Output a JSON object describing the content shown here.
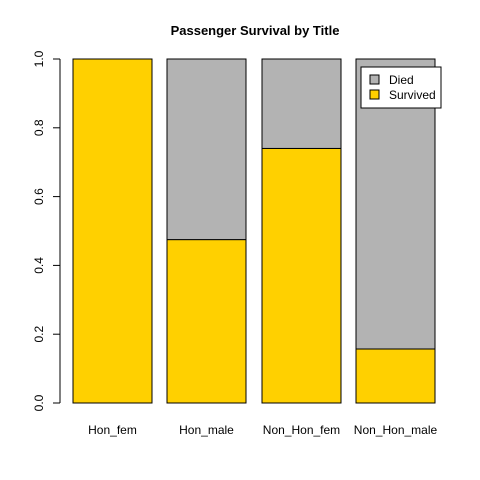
{
  "chart_data": {
    "type": "bar",
    "stacked": true,
    "title": "Passenger Survival by Title",
    "categories": [
      "Hon_fem",
      "Hon_male",
      "Non_Hon_fem",
      "Non_Hon_male"
    ],
    "series": [
      {
        "name": "Survived",
        "color": "#FFD000",
        "values": [
          1.0,
          0.475,
          0.74,
          0.157
        ]
      },
      {
        "name": "Died",
        "color": "#B3B3B3",
        "values": [
          0.0,
          0.525,
          0.26,
          0.843
        ]
      }
    ],
    "ylim": [
      0,
      1
    ],
    "yticks": [
      "0.0",
      "0.2",
      "0.4",
      "0.6",
      "0.8",
      "1.0"
    ],
    "legend": {
      "placement": "top-right",
      "items": [
        {
          "label": "Died",
          "color": "#B3B3B3"
        },
        {
          "label": "Survived",
          "color": "#FFD000"
        }
      ]
    },
    "grid": false
  }
}
